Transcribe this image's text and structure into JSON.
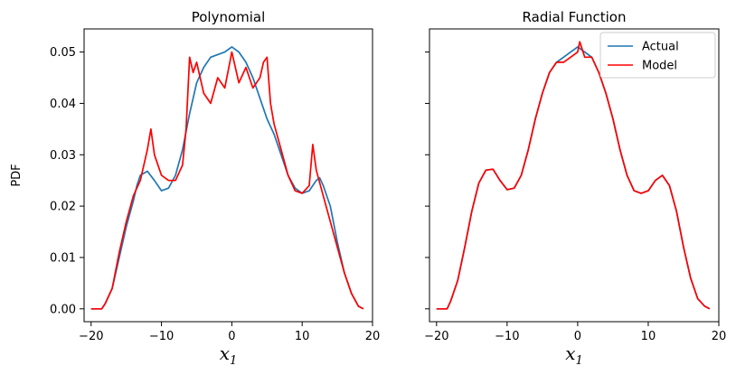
{
  "chart_data": [
    {
      "type": "line",
      "title": "Polynomial",
      "ylabel": "PDF",
      "xlabel": "x",
      "xlabel_sub": "1",
      "xlim": [
        -21,
        20
      ],
      "ylim": [
        -0.0025,
        0.0545
      ],
      "xticks": [
        -20,
        -10,
        0,
        10,
        20
      ],
      "xtick_labels": [
        "−20",
        "−10",
        "0",
        "10",
        "20"
      ],
      "yticks": [
        0.0,
        0.01,
        0.02,
        0.03,
        0.04,
        0.05
      ],
      "ytick_labels": [
        "0.00",
        "0.01",
        "0.02",
        "0.03",
        "0.04",
        "0.05"
      ],
      "series": [
        {
          "name": "Actual",
          "color": "#1f77b4",
          "x": [
            -20,
            -18.5,
            -18,
            -17,
            -16,
            -15,
            -14,
            -13.5,
            -13,
            -12,
            -11,
            -10,
            -9,
            -8,
            -7,
            -6,
            -5,
            -4,
            -3,
            -2,
            -1,
            0,
            1,
            2,
            3,
            4,
            5,
            6,
            7,
            8,
            9,
            10,
            11,
            12,
            12.5,
            13,
            14,
            15,
            16,
            17,
            18,
            18.7
          ],
          "y": [
            0.0,
            0.0,
            0.001,
            0.004,
            0.01,
            0.016,
            0.021,
            0.024,
            0.026,
            0.0268,
            0.025,
            0.023,
            0.0235,
            0.026,
            0.031,
            0.038,
            0.044,
            0.047,
            0.049,
            0.0495,
            0.05,
            0.051,
            0.05,
            0.048,
            0.045,
            0.041,
            0.037,
            0.034,
            0.03,
            0.026,
            0.0235,
            0.0225,
            0.023,
            0.025,
            0.0255,
            0.024,
            0.02,
            0.013,
            0.007,
            0.003,
            0.0005,
            0.0
          ]
        },
        {
          "name": "Model",
          "color": "#ff0000",
          "x": [
            -20,
            -18.5,
            -18,
            -17,
            -16,
            -15,
            -14,
            -13,
            -12,
            -11.5,
            -11,
            -10,
            -9,
            -8,
            -7,
            -6.5,
            -6,
            -5.5,
            -5,
            -4,
            -3,
            -2,
            -1,
            0,
            1,
            2,
            3,
            4,
            4.5,
            5,
            5.5,
            6,
            7,
            8,
            9,
            10,
            11,
            11.5,
            12,
            13,
            14,
            15,
            16,
            17,
            18,
            18.7
          ],
          "y": [
            0.0,
            0.0,
            0.001,
            0.004,
            0.011,
            0.017,
            0.022,
            0.025,
            0.031,
            0.035,
            0.03,
            0.026,
            0.025,
            0.025,
            0.028,
            0.035,
            0.049,
            0.046,
            0.048,
            0.042,
            0.04,
            0.045,
            0.043,
            0.05,
            0.044,
            0.047,
            0.043,
            0.045,
            0.048,
            0.049,
            0.04,
            0.036,
            0.031,
            0.026,
            0.023,
            0.0225,
            0.024,
            0.032,
            0.027,
            0.022,
            0.017,
            0.012,
            0.007,
            0.003,
            0.0005,
            0.0
          ]
        }
      ]
    },
    {
      "type": "line",
      "title": "Radial Function",
      "xlabel": "x",
      "xlabel_sub": "1",
      "xlim": [
        -21,
        20
      ],
      "ylim": [
        -0.0025,
        0.0545
      ],
      "xticks": [
        -20,
        -10,
        0,
        10,
        20
      ],
      "xtick_labels": [
        "−20",
        "−10",
        "0",
        "10",
        "20"
      ],
      "yticks": [
        0.0,
        0.01,
        0.02,
        0.03,
        0.04,
        0.05
      ],
      "legend": {
        "location": "upper right",
        "entries": [
          "Actual",
          "Model"
        ]
      },
      "series": [
        {
          "name": "Actual",
          "color": "#1f77b4",
          "x": [
            -20,
            -18.5,
            -18,
            -17,
            -16,
            -15,
            -14,
            -13,
            -12,
            -11,
            -10,
            -9,
            -8,
            -7,
            -6,
            -5,
            -4,
            -3,
            -2,
            -1,
            0,
            1,
            2,
            3,
            4,
            5,
            6,
            7,
            8,
            9,
            10,
            11,
            12,
            13,
            14,
            15,
            16,
            17,
            18,
            18.7
          ],
          "y": [
            0.0,
            0.0,
            0.0015,
            0.0055,
            0.012,
            0.019,
            0.0245,
            0.027,
            0.0272,
            0.025,
            0.0232,
            0.0235,
            0.026,
            0.031,
            0.037,
            0.042,
            0.046,
            0.048,
            0.049,
            0.05,
            0.051,
            0.05,
            0.049,
            0.046,
            0.042,
            0.037,
            0.031,
            0.026,
            0.023,
            0.0225,
            0.023,
            0.025,
            0.026,
            0.024,
            0.019,
            0.012,
            0.006,
            0.002,
            0.0005,
            0.0
          ]
        },
        {
          "name": "Model",
          "color": "#ff0000",
          "x": [
            -20,
            -18.5,
            -18,
            -17,
            -16,
            -15,
            -14,
            -13,
            -12,
            -11,
            -10,
            -9,
            -8,
            -7,
            -6,
            -5,
            -4,
            -3,
            -2,
            -1,
            0,
            0.3,
            1,
            2,
            3,
            4,
            5,
            6,
            7,
            8,
            9,
            10,
            11,
            12,
            13,
            14,
            15,
            16,
            17,
            18,
            18.7
          ],
          "y": [
            0.0,
            0.0,
            0.0015,
            0.0055,
            0.012,
            0.019,
            0.0245,
            0.027,
            0.0272,
            0.025,
            0.0232,
            0.0235,
            0.026,
            0.031,
            0.037,
            0.042,
            0.046,
            0.048,
            0.048,
            0.049,
            0.05,
            0.052,
            0.049,
            0.049,
            0.046,
            0.042,
            0.037,
            0.031,
            0.026,
            0.023,
            0.0225,
            0.023,
            0.025,
            0.026,
            0.024,
            0.019,
            0.012,
            0.006,
            0.002,
            0.0005,
            0.0
          ]
        }
      ]
    }
  ]
}
